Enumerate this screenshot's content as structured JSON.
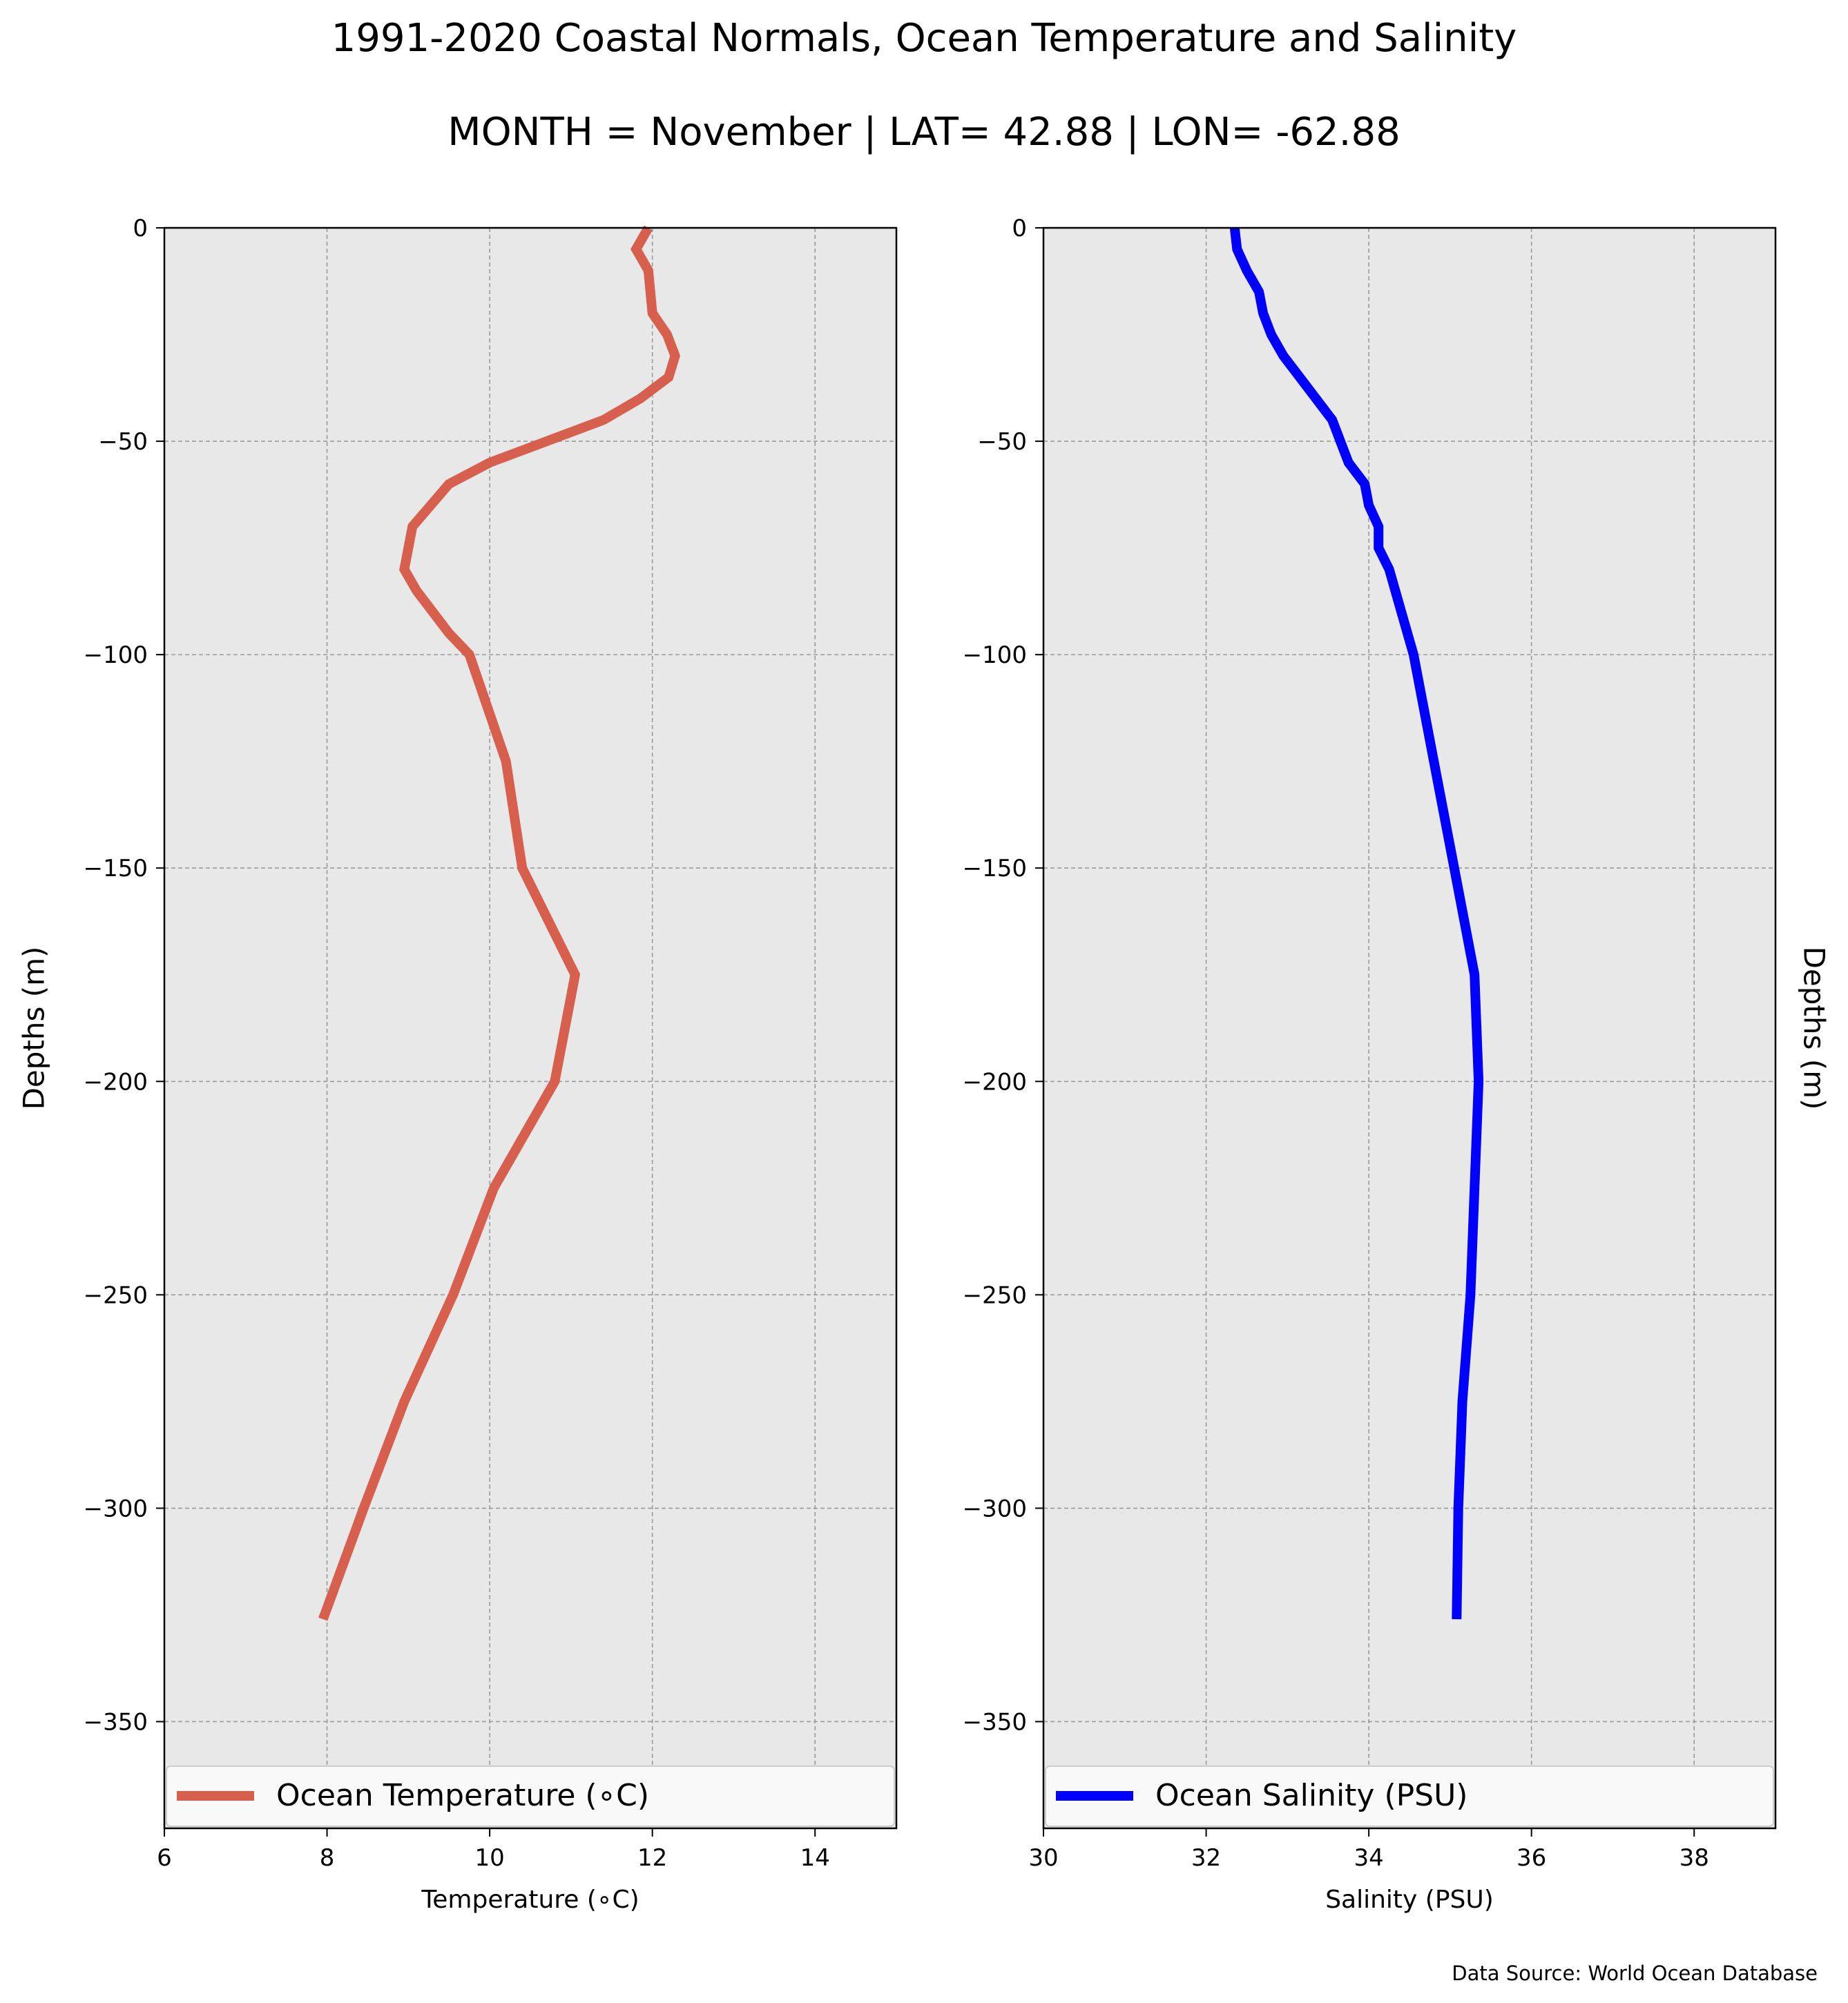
{
  "figure": {
    "title": "1991-2020 Coastal Normals, Ocean Temperature and Salinity",
    "subtitle": "MONTH = November | LAT= 42.88 | LON= -62.88",
    "source": "Data Source: World Ocean Database"
  },
  "chart_data": [
    {
      "type": "line",
      "xlabel": "Temperature (∘C)",
      "ylabel": "Depths (m)",
      "xlim": [
        6,
        15
      ],
      "ylim": [
        -375,
        0
      ],
      "xticks": [
        6,
        8,
        10,
        12,
        14
      ],
      "xtick_labels": [
        "6",
        "8",
        "10",
        "12",
        "14"
      ],
      "yticks": [
        0,
        -50,
        -100,
        -150,
        -200,
        -250,
        -300,
        -350
      ],
      "ytick_labels": [
        "0",
        "−50",
        "−100",
        "−150",
        "−200",
        "−250",
        "−300",
        "−350"
      ],
      "grid": true,
      "legend_position": "bottom",
      "series": [
        {
          "name": "Ocean Temperature (∘C)",
          "color": "#d65f4e",
          "x": [
            11.95,
            11.8,
            11.95,
            12.0,
            12.18,
            12.28,
            12.2,
            11.85,
            11.4,
            10.7,
            10.0,
            9.5,
            9.05,
            8.95,
            9.1,
            9.5,
            9.75,
            10.2,
            10.4,
            11.05,
            10.8,
            10.05,
            9.55,
            8.95,
            8.45,
            7.95
          ],
          "y": [
            0,
            -5,
            -10,
            -20,
            -25,
            -30,
            -35,
            -40,
            -45,
            -50,
            -55,
            -60,
            -70,
            -80,
            -85,
            -95,
            -100,
            -125,
            -150,
            -175,
            -200,
            -225,
            -250,
            -275,
            -300,
            -326
          ]
        }
      ]
    },
    {
      "type": "line",
      "xlabel": "Salinity (PSU)",
      "ylabel": "Depths (m)",
      "xlim": [
        30,
        39
      ],
      "ylim": [
        -375,
        0
      ],
      "xticks": [
        30,
        32,
        34,
        36,
        38
      ],
      "xtick_labels": [
        "30",
        "32",
        "34",
        "36",
        "38"
      ],
      "yticks": [
        0,
        -50,
        -100,
        -150,
        -200,
        -250,
        -300,
        -350
      ],
      "ytick_labels": [
        "0",
        "−50",
        "−100",
        "−150",
        "−200",
        "−250",
        "−300",
        "−350"
      ],
      "grid": true,
      "legend_position": "bottom",
      "series": [
        {
          "name": "Ocean Salinity (PSU)",
          "color": "#0000ff",
          "x": [
            32.35,
            32.38,
            32.5,
            32.65,
            32.7,
            32.8,
            32.95,
            33.15,
            33.35,
            33.55,
            33.65,
            33.75,
            33.95,
            34.0,
            34.12,
            34.12,
            34.25,
            34.4,
            34.55,
            34.8,
            35.05,
            35.3,
            35.35,
            35.25,
            35.15,
            35.1,
            35.08
          ],
          "y": [
            0,
            -5,
            -10,
            -15,
            -20,
            -25,
            -30,
            -35,
            -40,
            -45,
            -50,
            -55,
            -60,
            -65,
            -70,
            -75,
            -80,
            -90,
            -100,
            -125,
            -150,
            -175,
            -200,
            -250,
            -275,
            -300,
            -326
          ]
        }
      ]
    }
  ]
}
